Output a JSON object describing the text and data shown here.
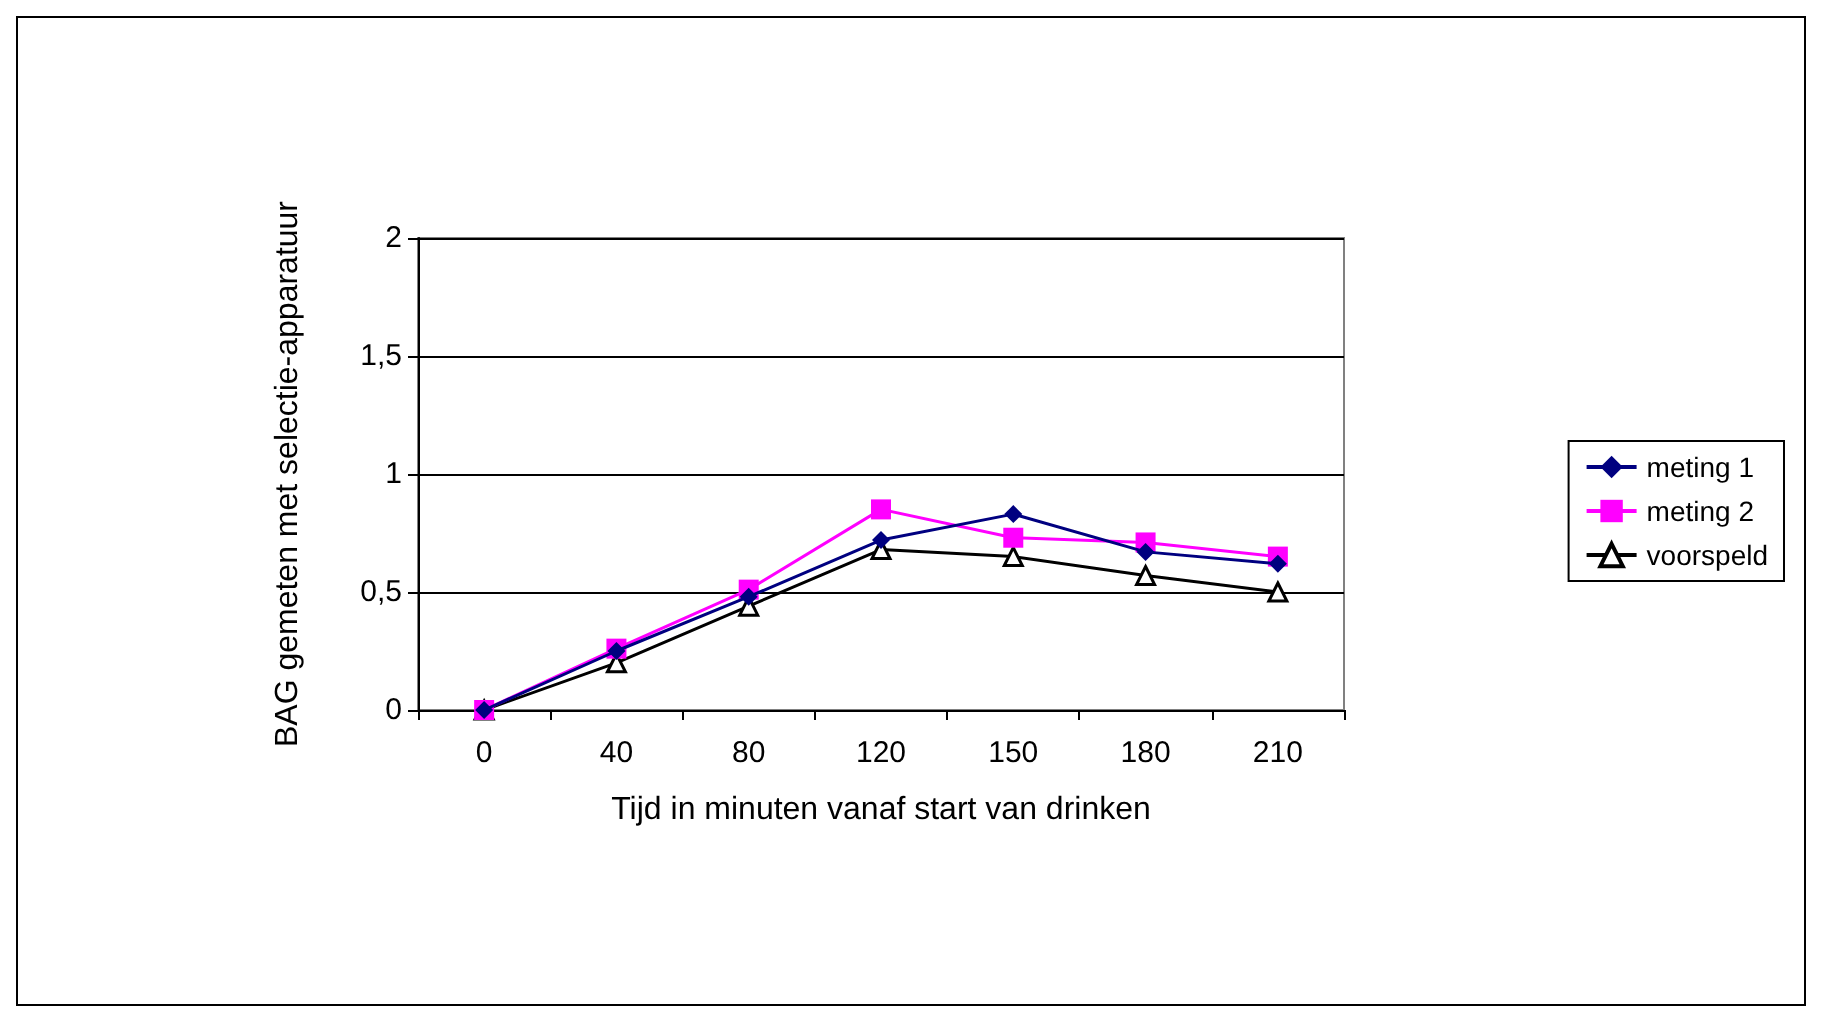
{
  "chart_data": {
    "type": "line",
    "xlabel": "Tijd in minuten vanaf start van drinken",
    "ylabel": "BAG gemeten met selectie-apparatuur",
    "categories": [
      "0",
      "40",
      "80",
      "120",
      "150",
      "180",
      "210"
    ],
    "series": [
      {
        "name": "meting 1",
        "color": "#000080",
        "marker": "diamond",
        "values": [
          0,
          0.25,
          0.48,
          0.72,
          0.83,
          0.67,
          0.62
        ]
      },
      {
        "name": "meting 2",
        "color": "#ff00ff",
        "marker": "square",
        "values": [
          0,
          0.26,
          0.51,
          0.85,
          0.73,
          0.71,
          0.65
        ]
      },
      {
        "name": "voorspeld",
        "color": "#000000",
        "marker": "triangle",
        "values": [
          0,
          0.2,
          0.44,
          0.68,
          0.65,
          0.57,
          0.5
        ]
      }
    ],
    "ylim": [
      0,
      2
    ],
    "yticks": [
      0,
      {
        "value": 0.5,
        "label": "0,5"
      },
      1,
      {
        "value": 1.5,
        "label": "1,5"
      },
      2
    ],
    "grid": "y",
    "legend": "right"
  }
}
